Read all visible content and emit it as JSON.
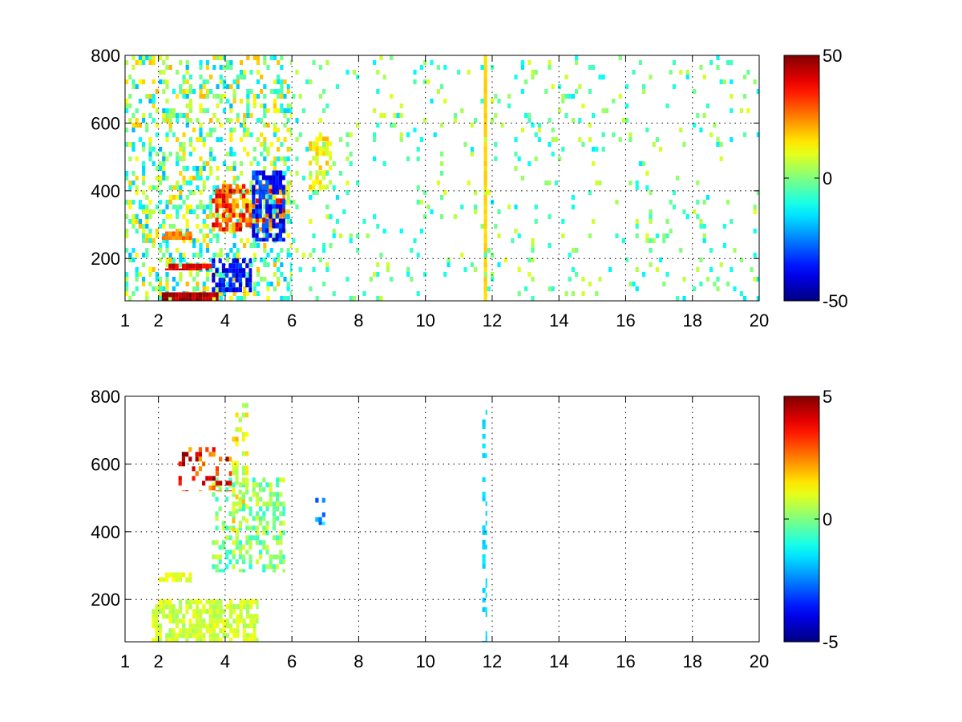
{
  "figure": {
    "background": "#ffffff",
    "colormap": "jet"
  },
  "chart_data": [
    {
      "type": "heatmap",
      "title": "",
      "xlabel": "",
      "ylabel": "",
      "xlim": [
        1,
        20
      ],
      "ylim": [
        75,
        800
      ],
      "xtick_labels": [
        "1",
        "2",
        "4",
        "6",
        "8",
        "10",
        "12",
        "14",
        "16",
        "18",
        "20"
      ],
      "xtick_values": [
        1,
        2,
        4,
        6,
        8,
        10,
        12,
        14,
        16,
        18,
        20
      ],
      "ytick_labels": [
        "200",
        "400",
        "600",
        "800"
      ],
      "ytick_values": [
        200,
        400,
        600,
        800
      ],
      "grid": true,
      "colorbar": {
        "min": -50,
        "max": 50,
        "tick_labels": [
          "-50",
          "0",
          "50"
        ],
        "tick_values": [
          -50,
          0,
          50
        ]
      },
      "features": [
        {
          "x": [
            1,
            6
          ],
          "y": [
            75,
            800
          ],
          "density": 0.35,
          "value_range": [
            -20,
            20
          ]
        },
        {
          "x": [
            2.1,
            3.8
          ],
          "y": [
            75,
            100
          ],
          "density": 0.9,
          "value_range": [
            40,
            50
          ]
        },
        {
          "x": [
            2.2,
            3.6
          ],
          "y": [
            165,
            185
          ],
          "density": 0.9,
          "value_range": [
            35,
            45
          ]
        },
        {
          "x": [
            2.1,
            3.0
          ],
          "y": [
            255,
            280
          ],
          "density": 0.9,
          "value_range": [
            20,
            30
          ]
        },
        {
          "x": [
            3.6,
            4.8
          ],
          "y": [
            100,
            200
          ],
          "density": 0.6,
          "value_range": [
            -45,
            -30
          ]
        },
        {
          "x": [
            3.6,
            5.8
          ],
          "y": [
            280,
            420
          ],
          "density": 0.6,
          "value_range": [
            15,
            45
          ]
        },
        {
          "x": [
            4.8,
            5.8
          ],
          "y": [
            250,
            460
          ],
          "density": 0.6,
          "value_range": [
            -45,
            -25
          ]
        },
        {
          "x": [
            6.5,
            7.2
          ],
          "y": [
            400,
            560
          ],
          "density": 0.5,
          "value_range": [
            5,
            20
          ]
        },
        {
          "x": [
            11.75,
            11.85
          ],
          "y": [
            75,
            800
          ],
          "density": 1.0,
          "value_range": [
            15,
            18
          ]
        },
        {
          "x": [
            6,
            20
          ],
          "y": [
            75,
            800
          ],
          "density": 0.06,
          "value_range": [
            -15,
            10
          ]
        }
      ]
    },
    {
      "type": "heatmap",
      "title": "",
      "xlabel": "",
      "ylabel": "",
      "xlim": [
        1,
        20
      ],
      "ylim": [
        75,
        800
      ],
      "xtick_labels": [
        "1",
        "2",
        "4",
        "6",
        "8",
        "10",
        "12",
        "14",
        "16",
        "18",
        "20"
      ],
      "xtick_values": [
        1,
        2,
        4,
        6,
        8,
        10,
        12,
        14,
        16,
        18,
        20
      ],
      "ytick_labels": [
        "200",
        "400",
        "600",
        "800"
      ],
      "ytick_values": [
        200,
        400,
        600,
        800
      ],
      "grid": true,
      "colorbar": {
        "min": -5,
        "max": 5,
        "tick_labels": [
          "-5",
          "0",
          "5"
        ],
        "tick_values": [
          -5,
          0,
          5
        ]
      },
      "features": [
        {
          "x": [
            1.8,
            5.0
          ],
          "y": [
            75,
            200
          ],
          "density": 0.7,
          "value_range": [
            0.3,
            1.2
          ]
        },
        {
          "x": [
            2.0,
            3.0
          ],
          "y": [
            250,
            280
          ],
          "density": 0.6,
          "value_range": [
            0.5,
            1.5
          ]
        },
        {
          "x": [
            3.6,
            5.8
          ],
          "y": [
            280,
            560
          ],
          "density": 0.45,
          "value_range": [
            -1,
            1
          ]
        },
        {
          "x": [
            4.2,
            4.7
          ],
          "y": [
            400,
            780
          ],
          "density": 0.35,
          "value_range": [
            0,
            2
          ]
        },
        {
          "x": [
            2.6,
            4.2
          ],
          "y": [
            520,
            650
          ],
          "density": 0.25,
          "value_range": [
            2,
            5
          ]
        },
        {
          "x": [
            6.7,
            7.0
          ],
          "y": [
            420,
            500
          ],
          "density": 0.4,
          "value_range": [
            -3,
            -1
          ]
        },
        {
          "x": [
            11.7,
            11.85
          ],
          "y": [
            75,
            760
          ],
          "density": 0.3,
          "value_range": [
            -1.8,
            -1.4
          ]
        }
      ]
    }
  ]
}
